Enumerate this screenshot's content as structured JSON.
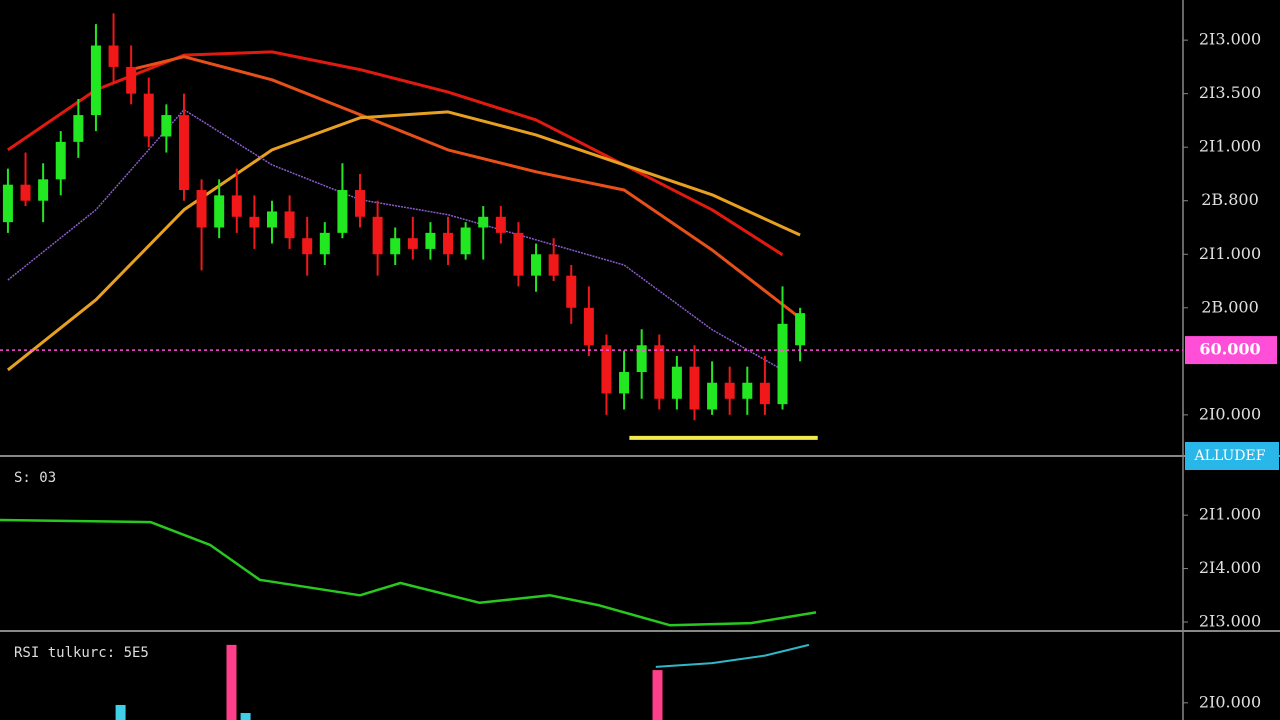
{
  "chart_data": [
    {
      "type": "candlestick",
      "xlim": [
        -0.45,
        66.75
      ],
      "open": [
        3.6,
        4.3,
        4.0,
        4.4,
        5.1,
        5.6,
        6.9,
        6.5,
        6.0,
        5.2,
        5.6,
        4.2,
        3.5,
        4.1,
        3.7,
        3.5,
        3.8,
        3.3,
        3.0,
        3.4,
        4.2,
        3.7,
        3.0,
        3.3,
        3.1,
        3.4,
        3.0,
        3.5,
        3.7,
        3.4,
        2.6,
        3.0,
        2.6,
        2.0,
        1.3,
        0.4,
        0.8,
        1.3,
        0.3,
        0.9,
        0.1,
        0.6,
        0.3,
        0.6,
        0.2,
        1.3
      ],
      "high": [
        4.6,
        4.9,
        4.7,
        5.3,
        5.9,
        7.3,
        7.5,
        6.9,
        6.3,
        5.8,
        6.0,
        4.4,
        4.4,
        4.6,
        4.1,
        4.0,
        4.1,
        3.7,
        3.6,
        4.7,
        4.5,
        4.0,
        3.5,
        3.7,
        3.6,
        3.7,
        3.6,
        3.9,
        3.9,
        3.6,
        3.2,
        3.3,
        2.8,
        2.4,
        1.5,
        1.2,
        1.6,
        1.5,
        1.1,
        1.3,
        1.0,
        0.9,
        0.9,
        1.1,
        2.4,
        2.0
      ],
      "low": [
        3.4,
        3.9,
        3.6,
        4.1,
        4.8,
        5.3,
        6.2,
        5.8,
        5.0,
        4.9,
        4.0,
        2.7,
        3.3,
        3.4,
        3.1,
        3.2,
        3.1,
        2.6,
        2.8,
        3.3,
        3.5,
        2.6,
        2.8,
        2.9,
        2.9,
        2.8,
        2.9,
        2.9,
        3.2,
        2.4,
        2.3,
        2.5,
        1.7,
        1.1,
        0.0,
        0.1,
        0.3,
        0.1,
        0.1,
        -0.1,
        0.0,
        0.0,
        0.0,
        0.0,
        0.1,
        1.0
      ],
      "close": [
        4.3,
        4.0,
        4.4,
        5.1,
        5.6,
        6.9,
        6.5,
        6.0,
        5.2,
        5.6,
        4.2,
        3.5,
        4.1,
        3.7,
        3.5,
        3.8,
        3.3,
        3.0,
        3.4,
        4.2,
        3.7,
        3.0,
        3.3,
        3.1,
        3.4,
        3.0,
        3.5,
        3.7,
        3.4,
        2.6,
        3.0,
        2.6,
        2.0,
        1.3,
        0.4,
        0.8,
        1.3,
        0.3,
        0.9,
        0.1,
        0.6,
        0.3,
        0.6,
        0.2,
        1.7,
        1.9
      ],
      "up_color": "#22e822",
      "down_color": "#f01818",
      "ylim": [
        -0.75,
        7.75
      ],
      "yticks": [
        {
          "value": 7,
          "label": "2I3.000"
        },
        {
          "value": 6,
          "label": "2I3.500"
        },
        {
          "value": 5,
          "label": "2I1.000"
        },
        {
          "value": 4,
          "label": "2B.800"
        },
        {
          "value": 3,
          "label": "2I1.000"
        },
        {
          "value": 2,
          "label": "2B.000"
        },
        {
          "value": 0,
          "label": "2I0.000"
        }
      ],
      "lines": [
        {
          "color": "#e01a10",
          "x": [
            0,
            5,
            10,
            15,
            20,
            25,
            30,
            35,
            40,
            44
          ],
          "values": [
            4.95,
            6.07,
            6.72,
            6.78,
            6.45,
            6.03,
            5.51,
            4.67,
            3.83,
            2.99
          ]
        },
        {
          "color": "#e8501a",
          "x": [
            7,
            10,
            15,
            20,
            25,
            30,
            35,
            40,
            45
          ],
          "values": [
            6.45,
            6.69,
            6.26,
            5.61,
            4.95,
            4.54,
            4.2,
            3.08,
            1.81
          ]
        },
        {
          "color": "#e8a020",
          "x": [
            0,
            5,
            10,
            15,
            20,
            25,
            30,
            35,
            40,
            45
          ],
          "values": [
            0.84,
            2.15,
            3.83,
            4.95,
            5.55,
            5.66,
            5.23,
            4.67,
            4.11,
            3.36
          ]
        },
        {
          "color": "#8a5ccc",
          "x": [
            0,
            5,
            10,
            15,
            20,
            25,
            30,
            35,
            40,
            44
          ],
          "values": [
            2.52,
            3.83,
            5.7,
            4.67,
            4.02,
            3.74,
            3.27,
            2.8,
            1.59,
            0.84
          ]
        }
      ],
      "price_line": {
        "value": 1.21,
        "label": "60.000",
        "color": "#ff4fd8"
      },
      "support": {
        "value": -0.43,
        "x": [
          35.3,
          46
        ],
        "color": "#f2e94e"
      },
      "badge": "ALLUDEF"
    },
    {
      "type": "line",
      "title": "S: 03",
      "xlim": [
        -0.45,
        66.75
      ],
      "color": "#28c81e",
      "x": [
        -0.45,
        8.1,
        11.5,
        14.3,
        20,
        22.3,
        26.8,
        30.8,
        33.6,
        37.6,
        42.2,
        45.9
      ],
      "values": [
        2.91,
        2.87,
        2.44,
        1.79,
        1.5,
        1.73,
        1.36,
        1.5,
        1.31,
        0.94,
        0.98,
        1.18
      ],
      "ylim": [
        0.85,
        4.07
      ],
      "yticks": [
        {
          "value": 3,
          "label": "2I1.000"
        },
        {
          "value": 2,
          "label": "2I4.000"
        },
        {
          "value": 1,
          "label": "2I3.000"
        }
      ]
    },
    {
      "type": "bar",
      "title": "RSI tulkurc: 5E5",
      "xlim": [
        -0.45,
        66.75
      ],
      "x": [
        6.4,
        12.7,
        13.5,
        36.9
      ],
      "values": [
        0.28,
        1.4,
        0.13,
        0.93
      ],
      "colors": [
        "#3fd0e8",
        "#ff3f8a",
        "#3fd0e8",
        "#ff3f8a"
      ],
      "line": {
        "color": "#2fb8c8",
        "x": [
          36.8,
          40,
          43,
          45.5
        ],
        "values": [
          0.99,
          1.06,
          1.2,
          1.4
        ]
      },
      "ylim": [
        0,
        1.64
      ],
      "yticks": [
        {
          "value": 0.32,
          "label": "2I0.000"
        }
      ]
    }
  ]
}
